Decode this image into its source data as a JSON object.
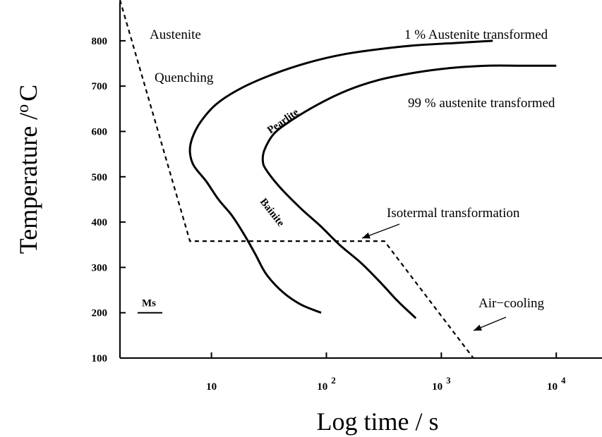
{
  "chart_data": {
    "type": "line",
    "title": "",
    "xlabel": "Log time / s",
    "ylabel_main": "Temperature /",
    "ylabel_super": "o",
    "ylabel_unit": "C",
    "x_scale": "log",
    "xlim": [
      1.6,
      25000
    ],
    "ylim": [
      100,
      890
    ],
    "y_ticks": [
      100,
      200,
      300,
      400,
      500,
      600,
      700,
      800
    ],
    "x_ticks": [
      {
        "value": 10,
        "base": "10",
        "exp": ""
      },
      {
        "value": 100,
        "base": "10",
        "exp": "2"
      },
      {
        "value": 1000,
        "base": "10",
        "exp": "3"
      },
      {
        "value": 10000,
        "base": "10",
        "exp": "4"
      }
    ],
    "grid": false,
    "series": [
      {
        "key": "start",
        "name": "1 % Austenite transformed",
        "style": "solid",
        "points": [
          [
            2800,
            800
          ],
          [
            1300,
            795
          ],
          [
            600,
            790
          ],
          [
            300,
            782
          ],
          [
            140,
            770
          ],
          [
            70,
            752
          ],
          [
            35,
            727
          ],
          [
            18,
            695
          ],
          [
            11,
            660
          ],
          [
            8,
            620
          ],
          [
            6.8,
            585
          ],
          [
            6.5,
            555
          ],
          [
            7,
            525
          ],
          [
            9,
            490
          ],
          [
            11.5,
            450
          ],
          [
            15,
            415
          ],
          [
            19,
            375
          ],
          [
            24,
            330
          ],
          [
            30,
            285
          ],
          [
            42,
            245
          ],
          [
            60,
            218
          ],
          [
            90,
            200
          ]
        ]
      },
      {
        "key": "finish",
        "name": "99 % austenite transformed",
        "style": "solid",
        "points": [
          [
            10000,
            745
          ],
          [
            5000,
            745
          ],
          [
            2500,
            745
          ],
          [
            1200,
            740
          ],
          [
            600,
            730
          ],
          [
            280,
            713
          ],
          [
            150,
            690
          ],
          [
            85,
            660
          ],
          [
            50,
            625
          ],
          [
            35,
            595
          ],
          [
            29,
            560
          ],
          [
            28,
            535
          ],
          [
            30,
            515
          ],
          [
            40,
            475
          ],
          [
            60,
            430
          ],
          [
            90,
            390
          ],
          [
            130,
            350
          ],
          [
            200,
            310
          ],
          [
            300,
            265
          ],
          [
            420,
            225
          ],
          [
            600,
            188
          ]
        ]
      },
      {
        "key": "quench",
        "name": "Quenching",
        "style": "dashed",
        "points": [
          [
            1.6,
            890
          ],
          [
            6.5,
            358
          ],
          [
            320,
            358
          ],
          [
            1900,
            100
          ]
        ]
      }
    ],
    "ms": {
      "label": "Ms",
      "value": 200
    },
    "labels": {
      "austenite": "Austenite",
      "quenching": "Quenching",
      "one_percent": "1 % Austenite transformed",
      "ninety_nine": "99 % austenite transformed",
      "pearlite": "Pearlite",
      "bainite": "Bainite",
      "isothermal": "Isotermal transformation",
      "air_cooling": "Air−cooling"
    },
    "colors": {
      "line": "#000000",
      "background": "#ffffff"
    }
  }
}
